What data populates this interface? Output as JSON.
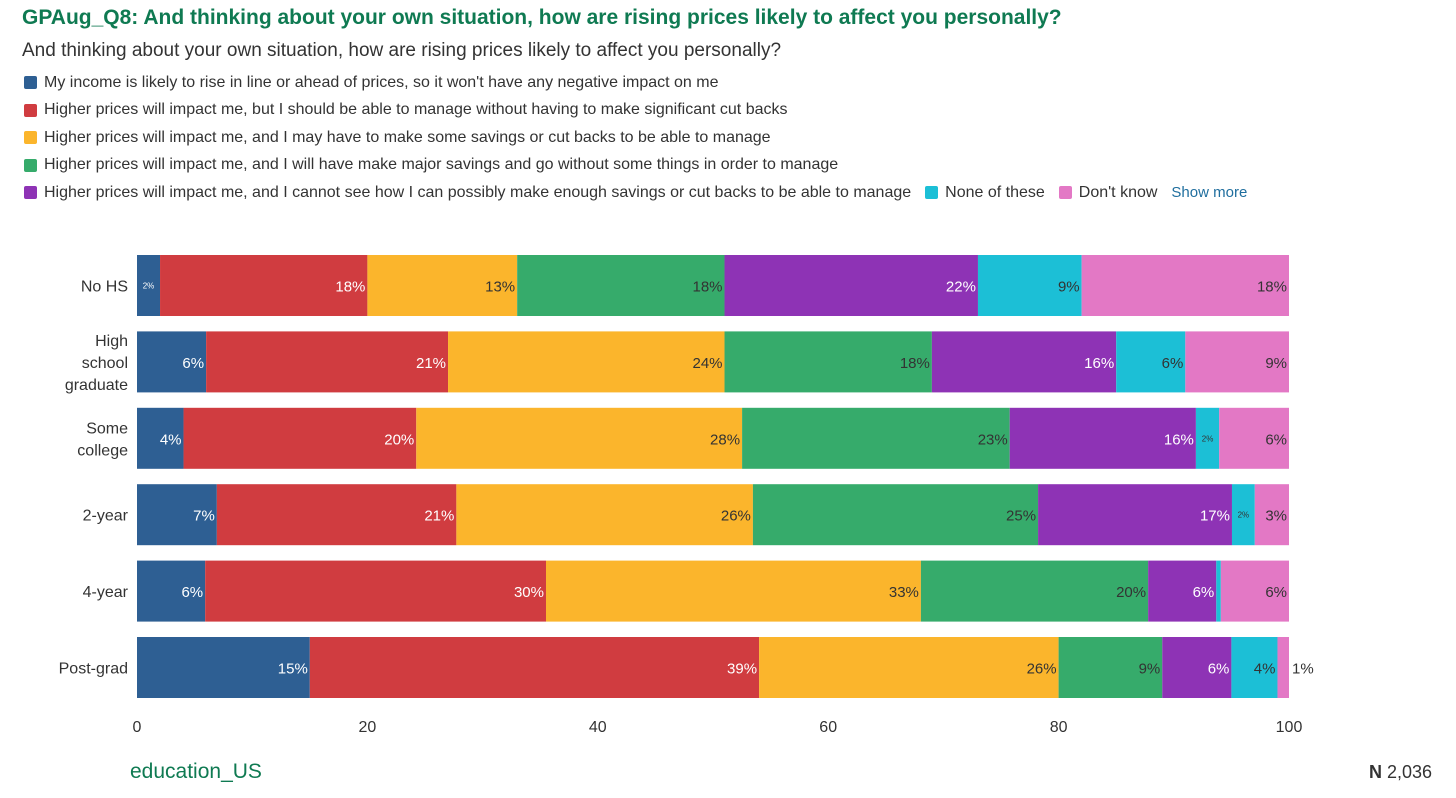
{
  "chart_data": {
    "type": "bar",
    "orientation": "horizontal",
    "stacked": true,
    "title": "GPAug_Q8: And thinking about your own situation, how are rising prices likely to affect you personally?",
    "subtitle": "And thinking about your own situation, how are rising prices likely to affect you personally?",
    "categories": [
      [
        "No HS"
      ],
      [
        "High",
        "school",
        "graduate"
      ],
      [
        "Some",
        "college"
      ],
      [
        "2-year"
      ],
      [
        "4-year"
      ],
      [
        "Post-grad"
      ]
    ],
    "series": [
      {
        "name": "My income is likely to rise in line or ahead of prices, so it won't have any negative impact on me",
        "color": "#2e5f93",
        "values": [
          2,
          6,
          4,
          7,
          6,
          15
        ],
        "labels": [
          "2%",
          "6%",
          "4%",
          "7%",
          "6%",
          "15%"
        ]
      },
      {
        "name": "Higher prices will impact me, but I should be able to manage without having to make significant cut backs",
        "color": "#d03c40",
        "values": [
          18,
          21,
          20,
          21,
          30,
          39
        ],
        "labels": [
          "18%",
          "21%",
          "20%",
          "21%",
          "30%",
          "39%"
        ]
      },
      {
        "name": "Higher prices will impact me, and I may have to make some savings or cut backs to be able to manage",
        "color": "#fbb52c",
        "values": [
          13,
          24,
          28,
          26,
          33,
          26
        ],
        "labels": [
          "13%",
          "24%",
          "28%",
          "26%",
          "33%",
          "26%"
        ]
      },
      {
        "name": "Higher prices will impact me, and I will have make major savings and go without some things in order to manage",
        "color": "#36ab6b",
        "values": [
          18,
          18,
          23,
          25,
          20,
          9
        ],
        "labels": [
          "18%",
          "18%",
          "23%",
          "25%",
          "20%",
          "9%"
        ]
      },
      {
        "name": "Higher prices will impact me, and I cannot see how I can possibly make enough savings or cut backs to be able to manage",
        "color": "#8e33b5",
        "values": [
          22,
          16,
          16,
          17,
          6,
          6
        ],
        "labels": [
          "22%",
          "16%",
          "16%",
          "17%",
          "6%",
          "6%"
        ]
      },
      {
        "name": "None of these",
        "color": "#1cbfd6",
        "values": [
          9,
          6,
          2,
          2,
          0.4,
          4
        ],
        "labels": [
          "9%",
          "6%",
          "2%",
          "2%",
          "",
          "4%"
        ]
      },
      {
        "name": "Don't know",
        "color": "#e378c5",
        "values": [
          18,
          9,
          6,
          3,
          6,
          1
        ],
        "labels": [
          "18%",
          "9%",
          "6%",
          "3%",
          "6%",
          "1%"
        ]
      }
    ],
    "xlim": [
      0,
      100
    ],
    "xticks": [
      "0",
      "20",
      "40",
      "60",
      "80",
      "100"
    ],
    "grid": false,
    "legend_position": "top"
  },
  "legend": {
    "show_more": "Show more"
  },
  "footer": {
    "dataset": "education_US",
    "n_label": "N",
    "n_value": "2,036"
  }
}
